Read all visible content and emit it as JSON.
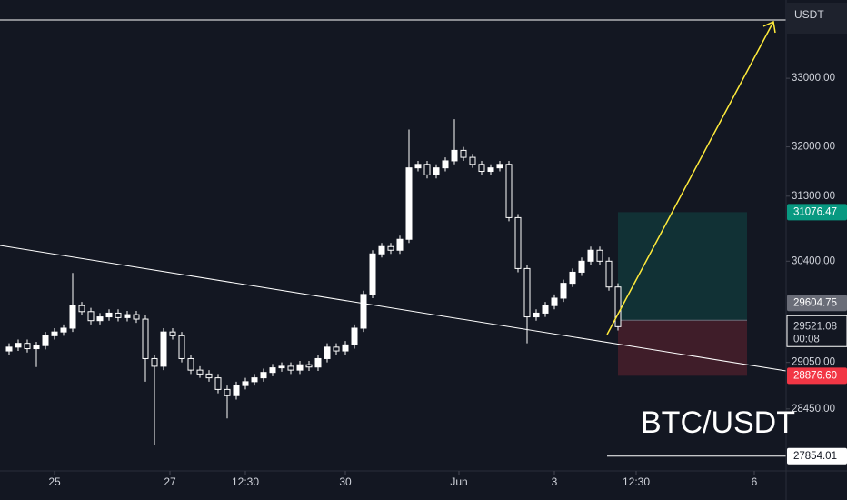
{
  "chart_data": {
    "type": "candlestick",
    "title": "BTC/USDT",
    "currency": "USDT",
    "log_scale": true,
    "up_color": "#ffffff",
    "down_color": "#ffffff",
    "x": [
      1,
      2,
      3,
      4,
      5,
      6,
      7,
      8,
      9,
      10,
      11,
      12,
      13,
      14,
      15,
      16,
      17,
      18,
      19,
      20,
      21,
      22,
      23,
      24,
      25,
      26,
      27,
      28,
      29,
      30,
      31,
      32,
      33,
      34,
      35,
      36,
      37,
      38,
      39,
      40,
      41,
      42,
      43,
      44,
      45,
      46,
      47,
      48,
      49,
      50,
      51,
      52,
      53,
      54,
      55,
      56,
      57,
      58,
      59,
      60,
      61,
      62,
      63,
      64,
      65,
      66,
      67,
      68
    ],
    "open": [
      29200,
      29250,
      29300,
      29230,
      29270,
      29400,
      29450,
      29500,
      29800,
      29720,
      29600,
      29650,
      29700,
      29640,
      29680,
      29620,
      29100,
      29000,
      29450,
      29400,
      29100,
      28950,
      28900,
      28850,
      28700,
      28620,
      28750,
      28800,
      28850,
      28920,
      28980,
      29000,
      28950,
      29020,
      28990,
      29100,
      29250,
      29200,
      29280,
      29500,
      29950,
      30500,
      30600,
      30550,
      30700,
      31700,
      31750,
      31600,
      31700,
      31800,
      31950,
      31850,
      31750,
      31650,
      31700,
      31750,
      31000,
      30300,
      29650,
      29700,
      29800,
      29900,
      30100,
      30250,
      30400,
      30550,
      30400,
      30050
    ],
    "high": [
      29300,
      29350,
      29350,
      29320,
      29450,
      29500,
      29550,
      30240,
      29850,
      29770,
      29700,
      29750,
      29750,
      29730,
      29730,
      29670,
      29150,
      29500,
      29500,
      29450,
      29150,
      29000,
      28950,
      28900,
      28750,
      28800,
      28850,
      28900,
      28970,
      29030,
      29050,
      29050,
      29070,
      29070,
      29150,
      29300,
      29300,
      29330,
      29550,
      30000,
      30550,
      30650,
      30650,
      30750,
      32250,
      31800,
      31800,
      31750,
      31850,
      32400,
      32000,
      31900,
      31800,
      31750,
      31800,
      31800,
      31050,
      30350,
      29750,
      29850,
      29950,
      30150,
      30300,
      30450,
      30600,
      30600,
      30450,
      30100
    ],
    "low": [
      29150,
      29200,
      29180,
      28990,
      29220,
      29350,
      29400,
      29450,
      29670,
      29550,
      29550,
      29600,
      29590,
      29590,
      29570,
      28800,
      27990,
      28950,
      29350,
      29050,
      28900,
      28850,
      28800,
      28650,
      28330,
      28570,
      28700,
      28750,
      28800,
      28870,
      28930,
      28900,
      28900,
      28940,
      28940,
      29050,
      29150,
      29150,
      29230,
      29450,
      29900,
      30450,
      30500,
      30500,
      30650,
      31650,
      31550,
      31550,
      31650,
      31750,
      31800,
      31700,
      31600,
      31600,
      31650,
      30950,
      30250,
      29300,
      29600,
      29650,
      29750,
      29850,
      30050,
      30200,
      30350,
      30350,
      30000,
      29470
    ],
    "close": [
      29250,
      29300,
      29230,
      29270,
      29400,
      29450,
      29500,
      29800,
      29720,
      29600,
      29650,
      29700,
      29640,
      29680,
      29620,
      29100,
      29000,
      29450,
      29400,
      29100,
      28950,
      28900,
      28850,
      28700,
      28620,
      28750,
      28800,
      28850,
      28920,
      28980,
      29000,
      28950,
      29020,
      28990,
      29100,
      29250,
      29200,
      29280,
      29500,
      29950,
      30500,
      30600,
      30550,
      30700,
      31700,
      31750,
      31600,
      31700,
      31800,
      31950,
      31850,
      31750,
      31650,
      31700,
      31750,
      31000,
      30300,
      29650,
      29700,
      29800,
      29900,
      30100,
      30250,
      30400,
      30550,
      30400,
      30050,
      29520
    ],
    "xlim": [
      0,
      86.5
    ],
    "xticks": [
      {
        "value": 6,
        "label": "25"
      },
      {
        "value": 18.7,
        "label": "27"
      },
      {
        "value": 27,
        "label": "12:30"
      },
      {
        "value": 38,
        "label": "30"
      },
      {
        "value": 50.5,
        "label": "Jun"
      },
      {
        "value": 61,
        "label": "3"
      },
      {
        "value": 70,
        "label": "12:30"
      },
      {
        "value": 83,
        "label": "6"
      }
    ],
    "ylim": [
      27670,
      34180
    ],
    "yticks": [
      {
        "value": 33000,
        "label": "33000.00"
      },
      {
        "value": 32000,
        "label": "32000.00"
      },
      {
        "value": 31300,
        "label": "31300.00"
      },
      {
        "value": 30400,
        "label": "30400.00"
      },
      {
        "value": 29050,
        "label": "29050.00"
      },
      {
        "value": 28450,
        "label": "28450.00"
      }
    ],
    "target": 31076.47,
    "target_color": "#089981",
    "entry": 29604.75,
    "entry_color": "#6a6d78",
    "last_price": 29521.08,
    "countdown": "00:08",
    "stop": {
      "value": 28876.6,
      "label": "28876.60"
    },
    "stop_color": "#f23645",
    "low_line": 27854.01
  }
}
